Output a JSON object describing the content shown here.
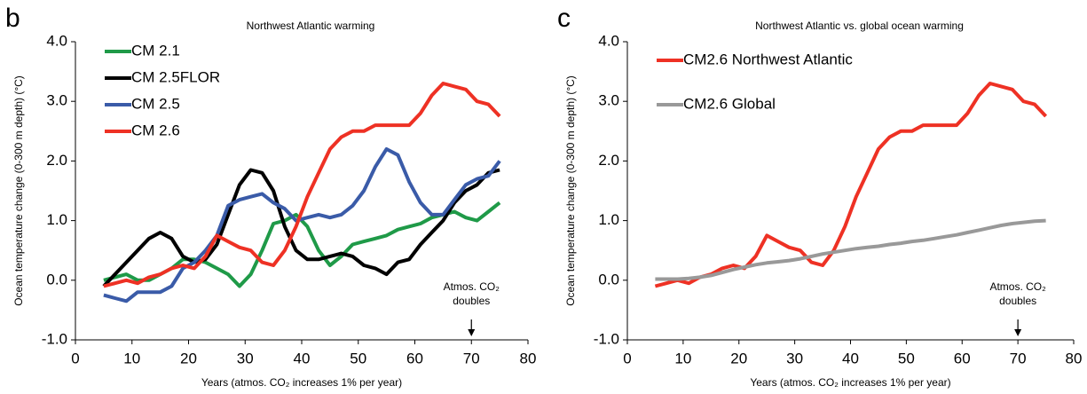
{
  "chart_data": [
    {
      "type": "line",
      "panel": "b",
      "title": "Northwest Atlantic warming",
      "xlabel": "Years (atmos. CO₂ increases 1% per year)",
      "ylabel": "Ocean temperature change (0-300 m depth) (°C)",
      "xlim": [
        0,
        80
      ],
      "xticks": [
        0,
        10,
        20,
        30,
        40,
        50,
        60,
        70,
        80
      ],
      "ylim": [
        -1,
        4
      ],
      "yticks": [
        {
          "value": -1,
          "label": "-1.0"
        },
        {
          "value": 0,
          "label": "0.0"
        },
        {
          "value": 1,
          "label": "1.0"
        },
        {
          "value": 2,
          "label": "2.0"
        },
        {
          "value": 3,
          "label": "3.0"
        },
        {
          "value": 4,
          "label": "4.0"
        }
      ],
      "annotation": {
        "x": 70,
        "text": [
          "Atmos. CO₂",
          "doubles"
        ]
      },
      "x": [
        5,
        7,
        9,
        11,
        13,
        15,
        17,
        19,
        21,
        23,
        25,
        27,
        29,
        31,
        33,
        35,
        37,
        39,
        41,
        43,
        45,
        47,
        49,
        51,
        53,
        55,
        57,
        59,
        61,
        63,
        65,
        67,
        69,
        71,
        73,
        75
      ],
      "series": [
        {
          "name": "CM 2.1",
          "color": "#1f9a48",
          "values": [
            0.0,
            0.05,
            0.1,
            0.0,
            0.0,
            0.1,
            0.2,
            0.35,
            0.35,
            0.3,
            0.2,
            0.1,
            -0.1,
            0.1,
            0.5,
            0.95,
            1.0,
            1.1,
            0.9,
            0.5,
            0.25,
            0.4,
            0.6,
            0.65,
            0.7,
            0.75,
            0.85,
            0.9,
            0.95,
            1.05,
            1.1,
            1.15,
            1.05,
            1.0,
            1.15,
            1.3
          ]
        },
        {
          "name": "CM 2.5FLOR",
          "color": "#000000",
          "values": [
            -0.1,
            0.1,
            0.3,
            0.5,
            0.7,
            0.8,
            0.7,
            0.4,
            0.3,
            0.35,
            0.6,
            1.1,
            1.6,
            1.85,
            1.8,
            1.5,
            0.9,
            0.5,
            0.35,
            0.35,
            0.4,
            0.45,
            0.4,
            0.25,
            0.2,
            0.1,
            0.3,
            0.35,
            0.6,
            0.8,
            1.0,
            1.3,
            1.5,
            1.6,
            1.8,
            1.85
          ]
        },
        {
          "name": "CM 2.5",
          "color": "#3a5ba8",
          "values": [
            -0.25,
            -0.3,
            -0.35,
            -0.2,
            -0.2,
            -0.2,
            -0.1,
            0.2,
            0.3,
            0.5,
            0.75,
            1.25,
            1.35,
            1.4,
            1.45,
            1.3,
            1.2,
            1.0,
            1.05,
            1.1,
            1.05,
            1.1,
            1.25,
            1.5,
            1.9,
            2.2,
            2.1,
            1.65,
            1.3,
            1.1,
            1.1,
            1.35,
            1.6,
            1.7,
            1.75,
            2.0
          ]
        },
        {
          "name": "CM 2.6",
          "color": "#ee3124",
          "values": [
            -0.1,
            -0.05,
            0.0,
            -0.05,
            0.05,
            0.1,
            0.2,
            0.25,
            0.2,
            0.4,
            0.75,
            0.65,
            0.55,
            0.5,
            0.3,
            0.25,
            0.5,
            0.9,
            1.4,
            1.8,
            2.2,
            2.4,
            2.5,
            2.5,
            2.6,
            2.6,
            2.6,
            2.6,
            2.8,
            3.1,
            3.3,
            3.25,
            3.2,
            3.0,
            2.95,
            2.75
          ]
        }
      ]
    },
    {
      "type": "line",
      "panel": "c",
      "title": "Northwest Atlantic vs. global ocean warming",
      "xlabel": "Years (atmos. CO₂ increases 1% per year)",
      "ylabel": "Ocean temperature change (0-300 m depth) (°C)",
      "xlim": [
        0,
        80
      ],
      "xticks": [
        0,
        10,
        20,
        30,
        40,
        50,
        60,
        70,
        80
      ],
      "ylim": [
        -1,
        4
      ],
      "yticks": [
        {
          "value": -1,
          "label": "-1.0"
        },
        {
          "value": 0,
          "label": "0.0"
        },
        {
          "value": 1,
          "label": "1.0"
        },
        {
          "value": 2,
          "label": "2.0"
        },
        {
          "value": 3,
          "label": "3.0"
        },
        {
          "value": 4,
          "label": "4.0"
        }
      ],
      "annotation": {
        "x": 70,
        "text": [
          "Atmos. CO₂",
          "doubles"
        ]
      },
      "x": [
        5,
        7,
        9,
        11,
        13,
        15,
        17,
        19,
        21,
        23,
        25,
        27,
        29,
        31,
        33,
        35,
        37,
        39,
        41,
        43,
        45,
        47,
        49,
        51,
        53,
        55,
        57,
        59,
        61,
        63,
        65,
        67,
        69,
        71,
        73,
        75
      ],
      "series": [
        {
          "name": "CM2.6 Northwest Atlantic",
          "color": "#ee3124",
          "values": [
            -0.1,
            -0.05,
            0.0,
            -0.05,
            0.05,
            0.1,
            0.2,
            0.25,
            0.2,
            0.4,
            0.75,
            0.65,
            0.55,
            0.5,
            0.3,
            0.25,
            0.5,
            0.9,
            1.4,
            1.8,
            2.2,
            2.4,
            2.5,
            2.5,
            2.6,
            2.6,
            2.6,
            2.6,
            2.8,
            3.1,
            3.3,
            3.25,
            3.2,
            3.0,
            2.95,
            2.75
          ]
        },
        {
          "name": "CM2.6 Global",
          "color": "#999999",
          "values": [
            0.02,
            0.02,
            0.02,
            0.03,
            0.05,
            0.08,
            0.13,
            0.18,
            0.22,
            0.26,
            0.29,
            0.31,
            0.33,
            0.36,
            0.4,
            0.44,
            0.47,
            0.5,
            0.53,
            0.55,
            0.57,
            0.6,
            0.62,
            0.65,
            0.67,
            0.7,
            0.73,
            0.76,
            0.8,
            0.84,
            0.88,
            0.92,
            0.95,
            0.97,
            0.99,
            1.0
          ]
        }
      ]
    }
  ]
}
